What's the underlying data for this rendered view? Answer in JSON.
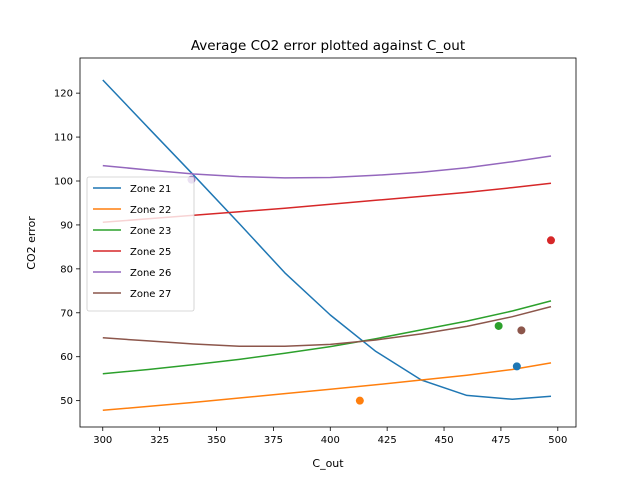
{
  "chart_data": {
    "type": "line",
    "title": "Average CO2 error plotted against C_out",
    "xlabel": "C_out",
    "ylabel": "CO2 error",
    "xlim": [
      290,
      508
    ],
    "ylim": [
      44,
      128
    ],
    "xticks": [
      300,
      325,
      350,
      375,
      400,
      425,
      450,
      475,
      500
    ],
    "yticks": [
      50,
      60,
      70,
      80,
      90,
      100,
      110,
      120
    ],
    "grid": false,
    "legend_position": "center-left",
    "series": [
      {
        "name": "Zone 21",
        "color": "#1f77b4",
        "x": [
          300,
          320,
          340,
          360,
          380,
          400,
          420,
          440,
          460,
          480,
          497
        ],
        "y": [
          123,
          112.1,
          101.3,
          90.3,
          79.1,
          69.5,
          61.2,
          54.7,
          51.2,
          50.3,
          51
        ],
        "point": [
          482,
          57.8
        ]
      },
      {
        "name": "Zone 22",
        "color": "#ff7f0e",
        "x": [
          300,
          320,
          340,
          360,
          380,
          400,
          420,
          440,
          460,
          480,
          497
        ],
        "y": [
          47.8,
          48.7,
          49.6,
          50.6,
          51.6,
          52.6,
          53.6,
          54.7,
          55.8,
          57.1,
          58.6
        ],
        "point": [
          413,
          50
        ]
      },
      {
        "name": "Zone 23",
        "color": "#2ca02c",
        "x": [
          300,
          320,
          340,
          360,
          380,
          400,
          420,
          440,
          460,
          480,
          497
        ],
        "y": [
          56.1,
          57.1,
          58.2,
          59.4,
          60.8,
          62.3,
          64.1,
          66.1,
          68.1,
          70.4,
          72.7
        ],
        "point": [
          474,
          67
        ]
      },
      {
        "name": "Zone 25",
        "color": "#d62728",
        "x": [
          300,
          320,
          340,
          360,
          380,
          400,
          420,
          440,
          460,
          480,
          497
        ],
        "y": [
          90.6,
          91.4,
          92.2,
          93,
          93.8,
          94.7,
          95.6,
          96.5,
          97.4,
          98.5,
          99.5
        ],
        "point": [
          497,
          86.5
        ]
      },
      {
        "name": "Zone 26",
        "color": "#9467bd",
        "x": [
          300,
          320,
          340,
          360,
          380,
          400,
          420,
          440,
          460,
          480,
          497
        ],
        "y": [
          103.5,
          102.5,
          101.6,
          101,
          100.7,
          100.8,
          101.3,
          102,
          103,
          104.4,
          105.7
        ],
        "point": [
          339,
          100.3
        ]
      },
      {
        "name": "Zone 27",
        "color": "#8c564b",
        "x": [
          300,
          320,
          340,
          360,
          380,
          400,
          420,
          440,
          460,
          480,
          497
        ],
        "y": [
          64.3,
          63.6,
          62.9,
          62.4,
          62.4,
          62.8,
          63.8,
          65.2,
          66.9,
          69.1,
          71.4
        ],
        "point": [
          484,
          66
        ]
      }
    ]
  }
}
